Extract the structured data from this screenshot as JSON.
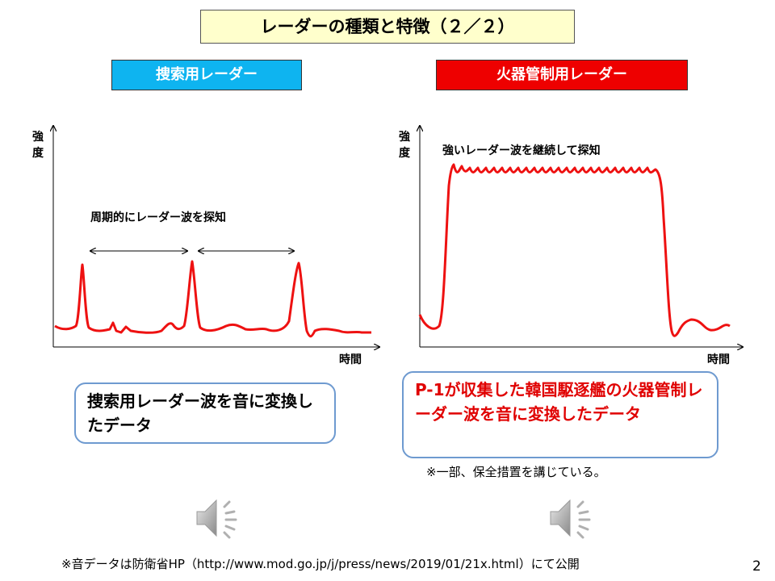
{
  "title": "レーダーの種類と特徴（２／２）",
  "left": {
    "label": "捜索用レーダー",
    "axis_y": "強度",
    "axis_x": "時間",
    "annotation": "周期的にレーダー波を探知",
    "callout": "捜索用レーダー波を音に変換したデータ",
    "speaker_icon": "speaker-icon"
  },
  "right": {
    "label": "火器管制用レーダー",
    "axis_y": "強度",
    "axis_x": "時間",
    "annotation": "強いレーダー波を継続して探知",
    "callout": "P-1が収集した韓国駆逐艦の火器管制レーダー波を音に変換したデータ",
    "note": "※一部、保全措置を講じている。",
    "speaker_icon": "speaker-icon"
  },
  "footer": "※音データは防衛省HP（http://www.mod.go.jp/j/press/news/2019/01/21x.html）にて公開",
  "page_number": "2",
  "colors": {
    "title_bg": "#ffffcc",
    "search_label": "#0eb4f0",
    "fire_label": "#ee0000",
    "signal": "#ee1111",
    "note_blue": "#0000cc"
  }
}
